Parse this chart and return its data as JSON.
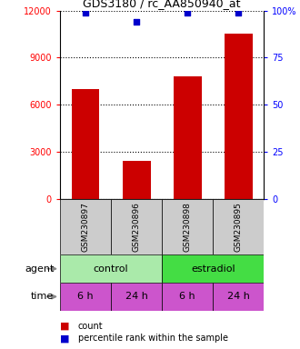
{
  "title": "GDS3180 / rc_AA850940_at",
  "samples": [
    "GSM230897",
    "GSM230896",
    "GSM230898",
    "GSM230895"
  ],
  "counts": [
    7000,
    2400,
    7800,
    10500
  ],
  "percentiles": [
    99,
    94,
    99,
    99
  ],
  "ylim_left": [
    0,
    12000
  ],
  "ylim_right": [
    0,
    100
  ],
  "yticks_left": [
    0,
    3000,
    6000,
    9000,
    12000
  ],
  "yticks_right": [
    0,
    25,
    50,
    75,
    100
  ],
  "bar_color": "#cc0000",
  "dot_color": "#0000cc",
  "agent_labels": [
    "control",
    "estradiol"
  ],
  "agent_colors": [
    "#aaeaaa",
    "#44dd44"
  ],
  "time_labels": [
    "6 h",
    "24 h",
    "6 h",
    "24 h"
  ],
  "time_color": "#cc55cc",
  "sample_bg_color": "#cccccc",
  "legend_count_color": "#cc0000",
  "legend_pct_color": "#0000cc"
}
